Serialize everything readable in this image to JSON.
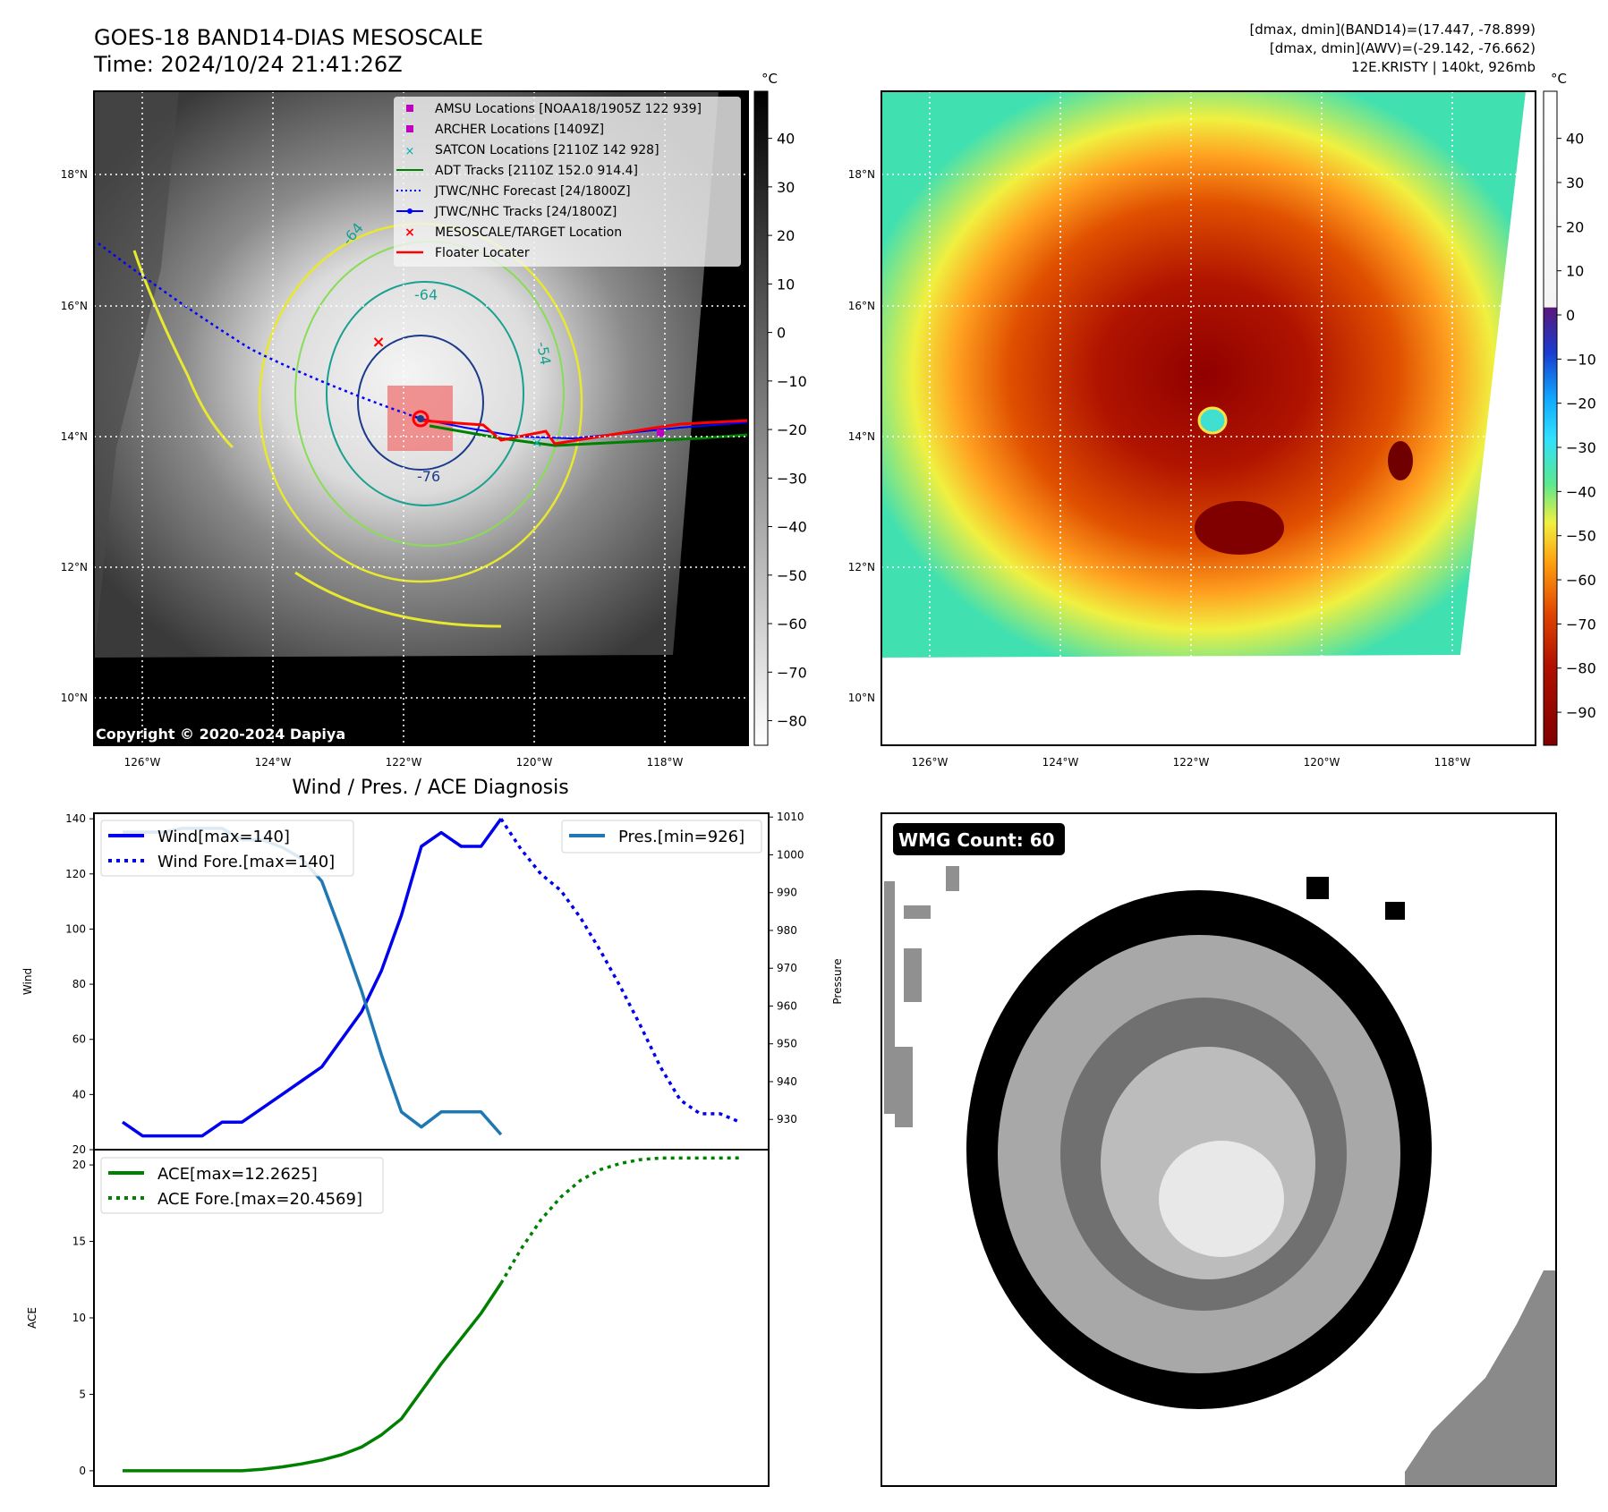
{
  "header": {
    "title_line1": "GOES-18 BAND14-DIAS MESOSCALE",
    "title_line2": "Time: 2024/10/24 21:41:26Z",
    "info_line1": "[dmax, dmin](BAND14)=(17.447, -78.899)",
    "info_line2": "[dmax, dmin](AWV)=(-29.142, -76.662)",
    "info_line3": "12E.KRISTY | 140kt, 926mb"
  },
  "map": {
    "lon_ticks": [
      "126°W",
      "124°W",
      "122°W",
      "120°W",
      "118°W"
    ],
    "lat_ticks": [
      "18°N",
      "16°N",
      "14°N",
      "12°N",
      "10°N"
    ],
    "copyright": "Copyright © 2020-2024 Dapiya",
    "contour_labels": [
      "-64",
      "-76",
      "-64",
      "-54"
    ],
    "legend": [
      {
        "label": "AMSU Locations [NOAA18/1905Z 122 939]",
        "color": "#c000c0"
      },
      {
        "label": "ARCHER Locations [1409Z]",
        "color": "#c000c0"
      },
      {
        "label": "SATCON Locations [2110Z 142 928]",
        "color": "#00b0b0"
      },
      {
        "label": "ADT Tracks [2110Z 152.0 914.4]",
        "color": "#008000"
      },
      {
        "label": "JTWC/NHC Forecast [24/1800Z]",
        "color": "#0000ff"
      },
      {
        "label": "JTWC/NHC Tracks [24/1800Z]",
        "color": "#0000ff"
      },
      {
        "label": "MESOSCALE/TARGET Location",
        "color": "#ff0000"
      },
      {
        "label": "Floater Locater",
        "color": "#ff0000"
      }
    ]
  },
  "colorbar_gray": {
    "unit": "°C",
    "ticks": [
      "40",
      "30",
      "20",
      "10",
      "0",
      "−10",
      "−20",
      "−30",
      "−40",
      "−50",
      "−60",
      "−70",
      "−80"
    ]
  },
  "colorbar_color": {
    "unit": "°C",
    "ticks": [
      "40",
      "30",
      "20",
      "10",
      "0",
      "−10",
      "−20",
      "−30",
      "−40",
      "−50",
      "−60",
      "−70",
      "−80",
      "−90"
    ]
  },
  "wmg": {
    "badge": "WMG Count: 60"
  },
  "chart_data": [
    {
      "type": "line",
      "title": "Wind / Pres. / ACE Diagnosis",
      "ylabel": "Wind",
      "ylabel2": "Pressure",
      "ylim": [
        20,
        142
      ],
      "ylim2": [
        922,
        1011
      ],
      "yticks": [
        20,
        40,
        60,
        80,
        100,
        120,
        140
      ],
      "yticks2": [
        930,
        940,
        950,
        960,
        970,
        980,
        990,
        1000,
        1010
      ],
      "legend_left": [
        "Wind[max=140]",
        "Wind Fore.[max=140]"
      ],
      "legend_right": [
        "Pres.[min=926]"
      ],
      "series": [
        {
          "name": "Wind[max=140]",
          "axis": "left",
          "color": "#0000ee",
          "style": "solid",
          "x": [
            0,
            1,
            2,
            3,
            4,
            5,
            6,
            7,
            8,
            9,
            10,
            11,
            12,
            13,
            14,
            15,
            16,
            17,
            18,
            19
          ],
          "y": [
            30,
            25,
            25,
            25,
            25,
            30,
            30,
            35,
            40,
            45,
            50,
            60,
            70,
            85,
            105,
            130,
            135,
            130,
            130,
            140
          ]
        },
        {
          "name": "Wind Fore.[max=140]",
          "axis": "left",
          "color": "#0000ee",
          "style": "dotted",
          "x": [
            19,
            20,
            21,
            22,
            23,
            24,
            25,
            26,
            27,
            28,
            29,
            30,
            31
          ],
          "y": [
            140,
            129,
            120,
            114,
            104,
            92,
            79,
            65,
            50,
            38,
            33,
            33,
            30
          ]
        },
        {
          "name": "Pres.[min=926]",
          "axis": "right",
          "color": "#1f77b4",
          "style": "solid",
          "x": [
            0,
            1,
            2,
            3,
            4,
            5,
            6,
            7,
            8,
            9,
            10,
            11,
            12,
            13,
            14,
            15,
            16,
            17,
            18,
            19
          ],
          "y": [
            1006,
            1006,
            1006,
            1007,
            1007,
            1007,
            1004,
            1004,
            1002,
            999,
            993,
            979,
            964,
            947,
            932,
            928,
            932,
            932,
            932,
            926
          ]
        }
      ]
    },
    {
      "type": "line",
      "ylabel": "ACE",
      "ylim": [
        -1,
        21
      ],
      "yticks": [
        0,
        5,
        10,
        15,
        20
      ],
      "legend": [
        "ACE[max=12.2625]",
        "ACE Fore.[max=20.4569]"
      ],
      "series": [
        {
          "name": "ACE[max=12.2625]",
          "color": "#008000",
          "style": "solid",
          "x": [
            0,
            1,
            2,
            3,
            4,
            5,
            6,
            7,
            8,
            9,
            10,
            11,
            12,
            13,
            14,
            15,
            16,
            17,
            18,
            19
          ],
          "y": [
            0,
            0,
            0,
            0,
            0,
            0,
            0,
            0.1,
            0.25,
            0.45,
            0.7,
            1.05,
            1.55,
            2.35,
            3.4,
            5.2,
            7.0,
            8.65,
            10.3,
            12.26
          ]
        },
        {
          "name": "ACE Fore.[max=20.4569]",
          "color": "#008000",
          "style": "dotted",
          "x": [
            19,
            20,
            21,
            22,
            23,
            24,
            25,
            26,
            27,
            28,
            29,
            30,
            31
          ],
          "y": [
            12.26,
            14.5,
            16.4,
            17.9,
            19.0,
            19.7,
            20.1,
            20.35,
            20.45,
            20.45,
            20.45,
            20.45,
            20.46
          ]
        }
      ]
    }
  ]
}
